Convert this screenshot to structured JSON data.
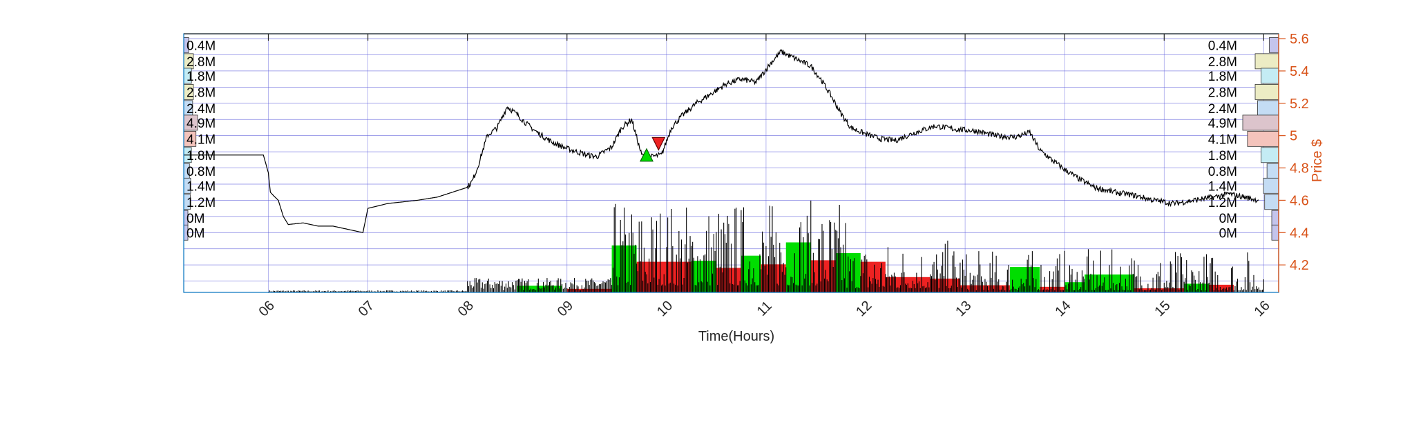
{
  "chart_data": {
    "type": "line",
    "title": "",
    "xlabel": "Time(Hours)",
    "ylabel": "Price $",
    "xlim": [
      5.15,
      16.15
    ],
    "ylim": [
      4.03,
      5.63
    ],
    "x_ticks": [
      "06",
      "07",
      "08",
      "09",
      "10",
      "11",
      "12",
      "13",
      "14",
      "15",
      "16"
    ],
    "y_ticks": [
      "4.2",
      "4.4",
      "4.6",
      "4.8",
      "5",
      "5.2",
      "5.4",
      "5.6"
    ],
    "grid": true,
    "colors": {
      "price_axis": "#D95319",
      "tick_text": "#262626",
      "grid": "#5b5bdc",
      "buy_bar": "#00dd00",
      "sell_bar": "#ee2222",
      "price_line": "#000000",
      "frame": "#0072BD"
    },
    "price_series": {
      "name": "",
      "x": [
        5.15,
        5.95,
        6.0,
        6.02,
        6.05,
        6.1,
        6.15,
        6.2,
        6.35,
        6.5,
        6.65,
        6.8,
        6.95,
        7.0,
        7.2,
        7.5,
        7.7,
        7.9,
        8.0,
        8.05,
        8.1,
        8.2,
        8.3,
        8.4,
        8.5,
        8.6,
        8.7,
        8.85,
        9.0,
        9.2,
        9.3,
        9.45,
        9.55,
        9.65,
        9.75,
        9.85,
        9.95,
        10.05,
        10.15,
        10.3,
        10.45,
        10.6,
        10.75,
        10.9,
        11.05,
        11.15,
        11.25,
        11.35,
        11.45,
        11.55,
        11.65,
        11.75,
        11.85,
        12.0,
        12.15,
        12.3,
        12.5,
        12.7,
        12.9,
        13.1,
        13.3,
        13.5,
        13.65,
        13.75,
        13.85,
        14.0,
        14.15,
        14.3,
        14.5,
        14.7,
        14.9,
        15.1,
        15.3,
        15.5,
        15.65,
        15.8,
        15.95
      ],
      "y": [
        4.88,
        4.88,
        4.77,
        4.65,
        4.63,
        4.6,
        4.5,
        4.45,
        4.46,
        4.44,
        4.44,
        4.42,
        4.4,
        4.55,
        4.58,
        4.6,
        4.62,
        4.66,
        4.68,
        4.72,
        4.8,
        5.0,
        5.05,
        5.18,
        5.13,
        5.07,
        5.02,
        4.96,
        4.92,
        4.88,
        4.87,
        4.93,
        5.05,
        5.1,
        4.88,
        4.87,
        4.88,
        5.05,
        5.12,
        5.2,
        5.26,
        5.32,
        5.35,
        5.33,
        5.45,
        5.52,
        5.49,
        5.46,
        5.43,
        5.35,
        5.25,
        5.14,
        5.05,
        5.01,
        4.98,
        4.97,
        5.02,
        5.06,
        5.04,
        5.03,
        5.0,
        4.99,
        5.02,
        4.91,
        4.86,
        4.79,
        4.73,
        4.68,
        4.65,
        4.63,
        4.6,
        4.58,
        4.6,
        4.62,
        4.64,
        4.62,
        4.6
      ]
    },
    "trade_markers": [
      {
        "type": "buy",
        "x": 9.8,
        "y": 4.88
      },
      {
        "type": "sell",
        "x": 9.92,
        "y": 4.95
      }
    ],
    "volume_profile": {
      "price_levels": [
        5.56,
        5.46,
        5.37,
        5.27,
        5.17,
        5.08,
        4.98,
        4.88,
        4.78,
        4.69,
        4.59,
        4.49,
        4.4
      ],
      "labels": [
        "0.4M",
        "2.8M",
        "1.8M",
        "2.8M",
        "2.4M",
        "4.9M",
        "4.1M",
        "1.8M",
        "0.8M",
        "1.4M",
        "1.2M",
        "0M",
        "0M"
      ],
      "values": [
        0.4,
        2.8,
        1.8,
        2.8,
        2.4,
        4.9,
        4.1,
        1.8,
        0.8,
        1.4,
        1.2,
        0,
        0
      ],
      "colors": [
        "#c4c4ec",
        "#ececc4",
        "#c4ecf4",
        "#ececc4",
        "#c4dcf4",
        "#dcc4cc",
        "#f4c4bc",
        "#c4ecf4",
        "#c4dcf4",
        "#c4dcf4",
        "#c4dcf4",
        "#c4c4ec",
        "#c4c4ec"
      ]
    },
    "volume_blocks": [
      {
        "x0": 8.5,
        "x1": 8.95,
        "level": 0.13,
        "side": "buy"
      },
      {
        "x0": 9.0,
        "x1": 9.45,
        "level": 0.07,
        "side": "sell"
      },
      {
        "x0": 9.45,
        "x1": 9.7,
        "level": 0.92,
        "side": "buy"
      },
      {
        "x0": 9.7,
        "x1": 10.25,
        "level": 0.6,
        "side": "sell"
      },
      {
        "x0": 10.25,
        "x1": 10.5,
        "level": 0.62,
        "side": "buy"
      },
      {
        "x0": 10.5,
        "x1": 10.75,
        "level": 0.48,
        "side": "sell"
      },
      {
        "x0": 10.75,
        "x1": 10.95,
        "level": 0.72,
        "side": "buy"
      },
      {
        "x0": 10.95,
        "x1": 11.2,
        "level": 0.55,
        "side": "sell"
      },
      {
        "x0": 11.2,
        "x1": 11.45,
        "level": 0.98,
        "side": "buy"
      },
      {
        "x0": 11.45,
        "x1": 11.7,
        "level": 0.63,
        "side": "sell"
      },
      {
        "x0": 11.7,
        "x1": 11.95,
        "level": 0.77,
        "side": "buy"
      },
      {
        "x0": 11.95,
        "x1": 12.2,
        "level": 0.6,
        "side": "sell"
      },
      {
        "x0": 12.2,
        "x1": 12.65,
        "level": 0.3,
        "side": "sell"
      },
      {
        "x0": 12.65,
        "x1": 12.95,
        "level": 0.27,
        "side": "sell"
      },
      {
        "x0": 12.95,
        "x1": 13.45,
        "level": 0.14,
        "side": "sell"
      },
      {
        "x0": 13.45,
        "x1": 13.75,
        "level": 0.5,
        "side": "buy"
      },
      {
        "x0": 13.75,
        "x1": 14.0,
        "level": 0.11,
        "side": "sell"
      },
      {
        "x0": 14.0,
        "x1": 14.2,
        "level": 0.2,
        "side": "buy"
      },
      {
        "x0": 14.2,
        "x1": 14.7,
        "level": 0.35,
        "side": "buy"
      },
      {
        "x0": 14.7,
        "x1": 15.2,
        "level": 0.08,
        "side": "sell"
      },
      {
        "x0": 15.2,
        "x1": 15.45,
        "level": 0.17,
        "side": "buy"
      },
      {
        "x0": 15.45,
        "x1": 15.7,
        "level": 0.15,
        "side": "sell"
      }
    ]
  }
}
